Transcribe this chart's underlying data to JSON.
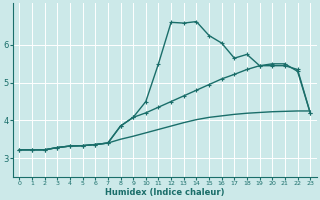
{
  "xlabel": "Humidex (Indice chaleur)",
  "bg_color": "#cce9e9",
  "grid_color": "#b0d8d8",
  "line_color": "#1a6e6a",
  "xlim": [
    -0.5,
    23.5
  ],
  "ylim": [
    2.5,
    7.1
  ],
  "yticks": [
    3,
    4,
    5,
    6
  ],
  "xticks": [
    0,
    1,
    2,
    3,
    4,
    5,
    6,
    7,
    8,
    9,
    10,
    11,
    12,
    13,
    14,
    15,
    16,
    17,
    18,
    19,
    20,
    21,
    22,
    23
  ],
  "series1_x": [
    0,
    1,
    2,
    3,
    4,
    5,
    6,
    7,
    8,
    9,
    10,
    11,
    12,
    13,
    14,
    15,
    16,
    17,
    18,
    19,
    20,
    21,
    22,
    23
  ],
  "series1_y": [
    3.22,
    3.22,
    3.22,
    3.28,
    3.32,
    3.33,
    3.36,
    3.4,
    3.85,
    4.08,
    4.5,
    5.5,
    6.6,
    6.58,
    6.62,
    6.25,
    6.05,
    5.65,
    5.75,
    5.45,
    5.45,
    5.45,
    5.35,
    4.2
  ],
  "series2_x": [
    0,
    1,
    2,
    3,
    4,
    5,
    6,
    7,
    8,
    9,
    10,
    11,
    12,
    13,
    14,
    15,
    16,
    17,
    18,
    19,
    20,
    21,
    22,
    23
  ],
  "series2_y": [
    3.22,
    3.22,
    3.22,
    3.28,
    3.32,
    3.33,
    3.36,
    3.4,
    3.85,
    4.08,
    4.2,
    4.35,
    4.5,
    4.65,
    4.8,
    4.95,
    5.1,
    5.22,
    5.35,
    5.45,
    5.5,
    5.5,
    5.3,
    4.2
  ],
  "series3_x": [
    0,
    1,
    2,
    3,
    4,
    5,
    6,
    7,
    8,
    9,
    10,
    11,
    12,
    13,
    14,
    15,
    16,
    17,
    18,
    19,
    20,
    21,
    22,
    23
  ],
  "series3_y": [
    3.22,
    3.22,
    3.22,
    3.28,
    3.32,
    3.33,
    3.36,
    3.4,
    3.5,
    3.58,
    3.67,
    3.76,
    3.85,
    3.94,
    4.02,
    4.08,
    4.12,
    4.16,
    4.19,
    4.21,
    4.23,
    4.24,
    4.25,
    4.25
  ]
}
